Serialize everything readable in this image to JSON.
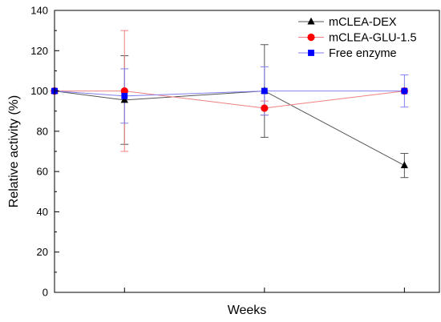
{
  "chart_data": {
    "type": "line",
    "title": "",
    "xlabel": "Weeks",
    "ylabel": "Relative activity (%)",
    "ylim": [
      0,
      140
    ],
    "yticks": [
      "0",
      "20",
      "40",
      "60",
      "80",
      "100",
      "120",
      "140"
    ],
    "x": [
      0,
      1,
      3,
      5
    ],
    "xlim": [
      0,
      5.5
    ],
    "legend_position": "top-right",
    "grid": false,
    "series": [
      {
        "name": "mCLEA-DEX",
        "color": "#555555",
        "marker": "triangle",
        "marker_color": "#000000",
        "values": [
          100,
          95.5,
          100,
          63
        ],
        "error": [
          0,
          22,
          23,
          6
        ]
      },
      {
        "name": "mCLEA-GLU-1.5",
        "color": "#f08080",
        "marker": "circle",
        "marker_color": "#ff0000",
        "values": [
          100,
          100,
          91.5,
          100
        ],
        "error": [
          0,
          30,
          3.5,
          0
        ]
      },
      {
        "name": "Free enzyme",
        "color": "#8080ee",
        "marker": "square",
        "marker_color": "#0000ff",
        "values": [
          100,
          97.5,
          100,
          100
        ],
        "error": [
          0,
          13.5,
          12,
          8
        ]
      }
    ]
  }
}
